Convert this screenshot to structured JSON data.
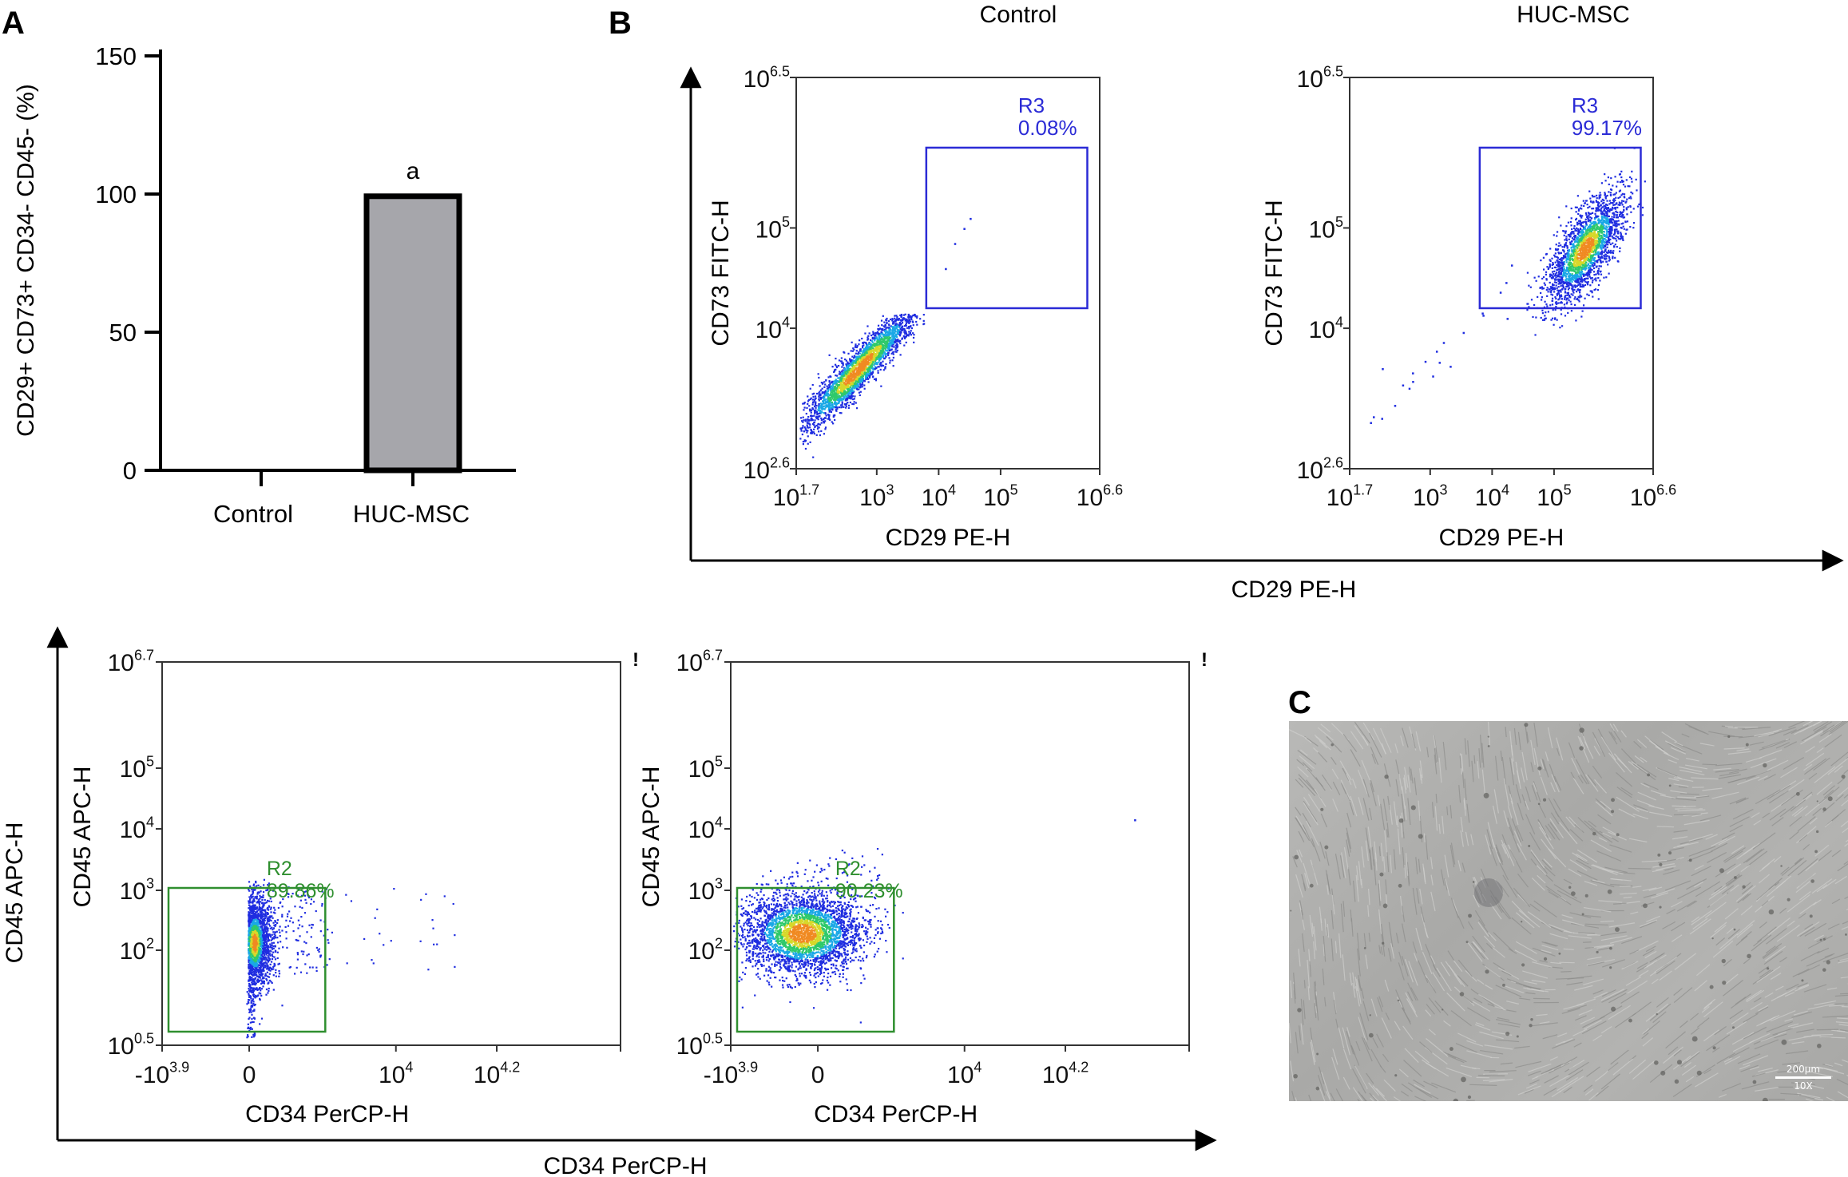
{
  "panels": {
    "a_letter": "A",
    "b_letter": "B",
    "c_letter": "C"
  },
  "chart_data": [
    {
      "id": "A",
      "type": "bar",
      "categories": [
        "Control",
        "HUC-MSC"
      ],
      "values": [
        0,
        99.2
      ],
      "errors": [
        0,
        0.5
      ],
      "annotations": [
        "",
        "a"
      ],
      "ylabel": "CD29+ CD73+ CD34- CD45- (%)",
      "xlabel": "",
      "ylim": [
        0,
        150
      ],
      "yticks": [
        0,
        50,
        100,
        150
      ],
      "bar_color": "#a6a6ab",
      "bar_edge": "#000000"
    },
    {
      "id": "B-control",
      "type": "scatter",
      "title": "Control",
      "xlabel": "CD29 PE-H",
      "ylabel": "CD73 FITC-H",
      "x_scale": "log",
      "y_scale": "log",
      "xlim_exp": [
        1.7,
        6.6
      ],
      "ylim_exp": [
        2.6,
        6.5
      ],
      "xticks": [
        "10^1.7",
        "10^3",
        "10^4",
        "10^5",
        "10^6.6"
      ],
      "yticks": [
        "10^2.6",
        "10^4",
        "10^5",
        "10^6.5"
      ],
      "gate": {
        "name": "R3",
        "percent": "0.08%",
        "color": "#2b2bd6",
        "x_exp": [
          3.8,
          6.4
        ],
        "y_exp": [
          4.2,
          5.8
        ]
      },
      "population_center_exp": [
        2.7,
        3.6
      ]
    },
    {
      "id": "B-hucmsc",
      "type": "scatter",
      "title": "HUC-MSC",
      "xlabel": "CD29 PE-H",
      "ylabel": "CD73 FITC-H",
      "x_scale": "log",
      "y_scale": "log",
      "xlim_exp": [
        1.7,
        6.6
      ],
      "ylim_exp": [
        2.6,
        6.5
      ],
      "xticks": [
        "10^1.7",
        "10^3",
        "10^4",
        "10^5",
        "10^6.6"
      ],
      "yticks": [
        "10^2.6",
        "10^4",
        "10^5",
        "10^6.5"
      ],
      "gate": {
        "name": "R3",
        "percent": "99.17%",
        "color": "#2b2bd6",
        "x_exp": [
          3.8,
          6.4
        ],
        "y_exp": [
          4.2,
          5.8
        ]
      },
      "population_center_exp": [
        5.5,
        4.8
      ]
    },
    {
      "id": "bottom-control",
      "type": "scatter",
      "xlabel": "CD34 PerCP-H",
      "ylabel": "CD45 APC-H",
      "x_scale": "biexponential",
      "y_scale": "log",
      "xticks": [
        "-10^3.9",
        "0",
        "10^4",
        "10^4.2"
      ],
      "yticks": [
        "10^0.5",
        "10^2",
        "10^3",
        "10^4",
        "10^5",
        "10^6.7"
      ],
      "gate": {
        "name": "R2",
        "percent": "89.86%",
        "color": "#2f8f2f"
      }
    },
    {
      "id": "bottom-hucmsc",
      "type": "scatter",
      "xlabel": "CD34 PerCP-H",
      "ylabel": "CD45 APC-H",
      "x_scale": "biexponential",
      "y_scale": "log",
      "xticks": [
        "-10^3.9",
        "0",
        "10^4",
        "10^4.2"
      ],
      "yticks": [
        "10^0.5",
        "10^2",
        "10^3",
        "10^4",
        "10^5",
        "10^6.7"
      ],
      "gate": {
        "name": "R2",
        "percent": "90.23%",
        "color": "#2f8f2f"
      }
    }
  ],
  "shared_axes": {
    "b_x": "CD29 PE-H",
    "bottom_x": "CD34 PerCP-H",
    "bottom_y": "CD45 APC-H"
  },
  "micrograph": {
    "scale_label": "200µm",
    "magnification": "10X"
  }
}
